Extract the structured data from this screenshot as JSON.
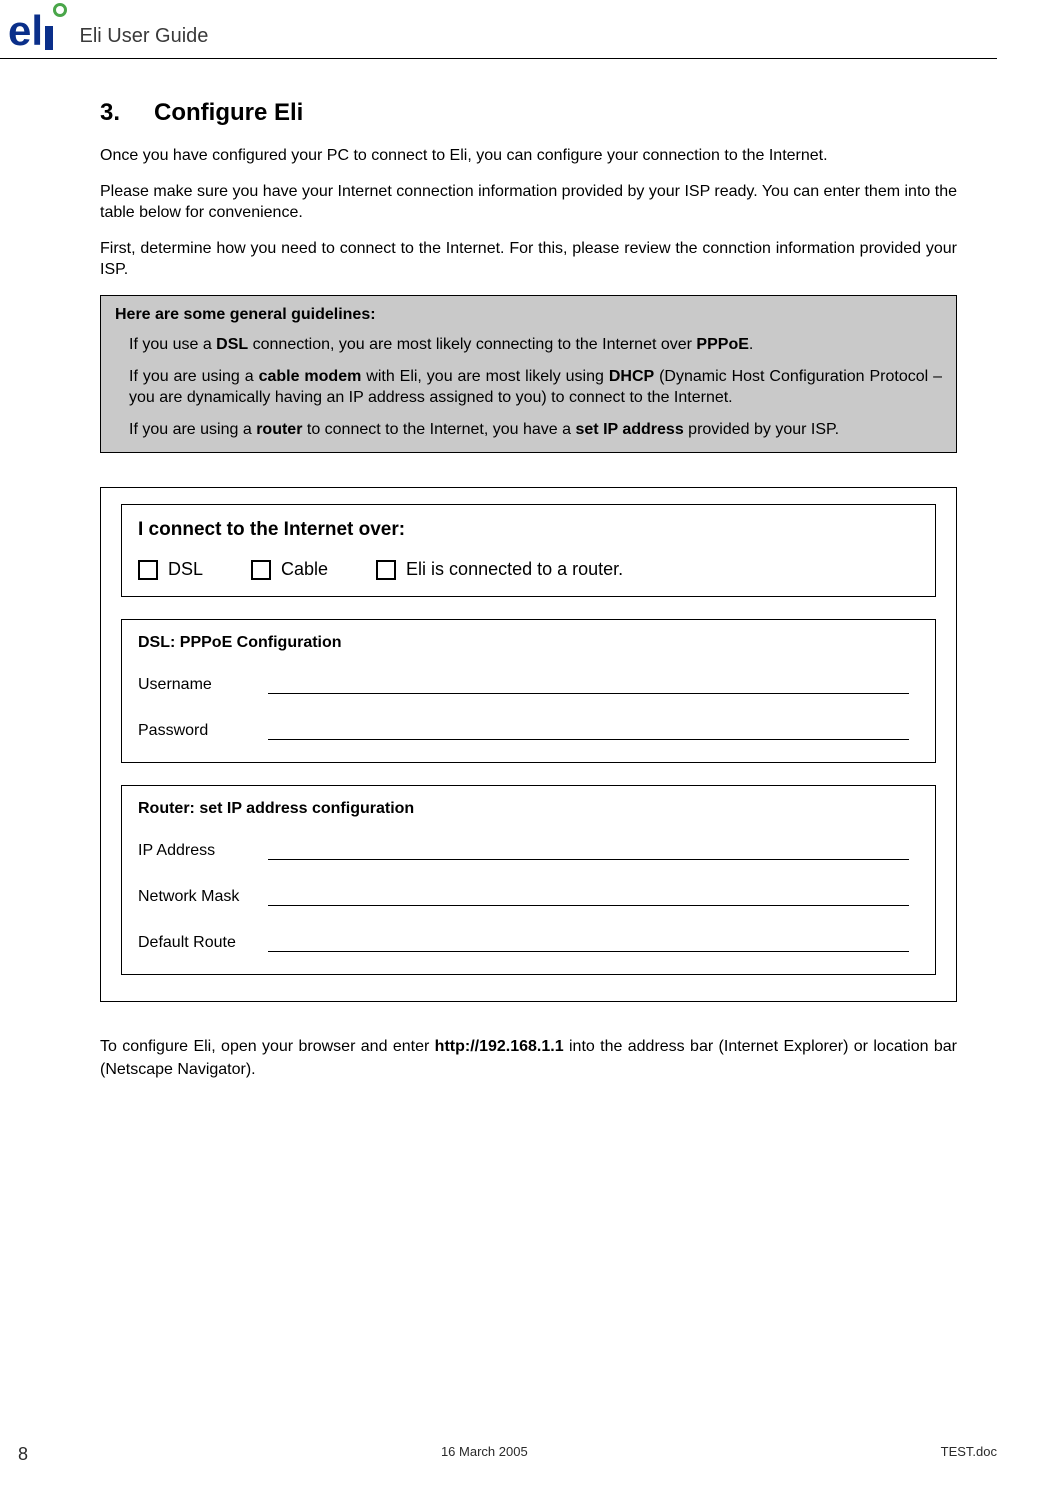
{
  "header": {
    "logo_text": "eli",
    "title": "Eli User Guide"
  },
  "section": {
    "number": "3.",
    "title": "Configure Eli",
    "p1": "Once you have configured your PC to connect to Eli, you can configure your connection to the Internet.",
    "p2": "Please make sure you have your Internet connection information provided by your ISP ready. You can enter them into the table below for convenience.",
    "p3": "First, determine how you need to connect to the Internet. For this, please review the connction information provided your ISP."
  },
  "guidelines": {
    "title": "Here are some general guidelines:",
    "g1_pre": "If you use a ",
    "g1_b1": "DSL",
    "g1_mid": " connection, you are most likely connecting to the Internet over ",
    "g1_b2": "PPPoE",
    "g1_post": ".",
    "g2_pre": "If you are using a ",
    "g2_b1": "cable modem",
    "g2_mid": " with Eli, you are most likely using ",
    "g2_b2": "DHCP",
    "g2_post": " (Dynamic Host Configuration Protocol – you are dynamically having an IP address assigned to you) to connect to the Internet.",
    "g3_pre": "If you are using a ",
    "g3_b1": "router",
    "g3_mid": " to connect to the Internet, you have a ",
    "g3_b2": "set IP address",
    "g3_post": " provided by your ISP."
  },
  "connect": {
    "title": "I connect to the Internet over:",
    "opt_dsl": "DSL",
    "opt_cable": "Cable",
    "opt_router": "Eli is connected to a router."
  },
  "dsl_box": {
    "title": "DSL: PPPoE Configuration",
    "f1": "Username",
    "f2": "Password"
  },
  "router_box": {
    "title": "Router: set IP address configuration",
    "f1": "IP Address",
    "f2": "Network Mask",
    "f3": "Default Route"
  },
  "after": {
    "pre": "To configure Eli, open your browser and enter ",
    "url": "http://192.168.1.1",
    "post": " into the address bar (Internet Explorer) or location bar (Netscape Navigator)."
  },
  "footer": {
    "page": "8",
    "date": "16 March 2005",
    "file": "TEST.doc"
  },
  "colors": {
    "logo_blue": "#0a2f8a",
    "logo_green": "#4aa64a",
    "box_gray": "#c9c9c9",
    "text": "#000000",
    "bg": "#ffffff"
  }
}
